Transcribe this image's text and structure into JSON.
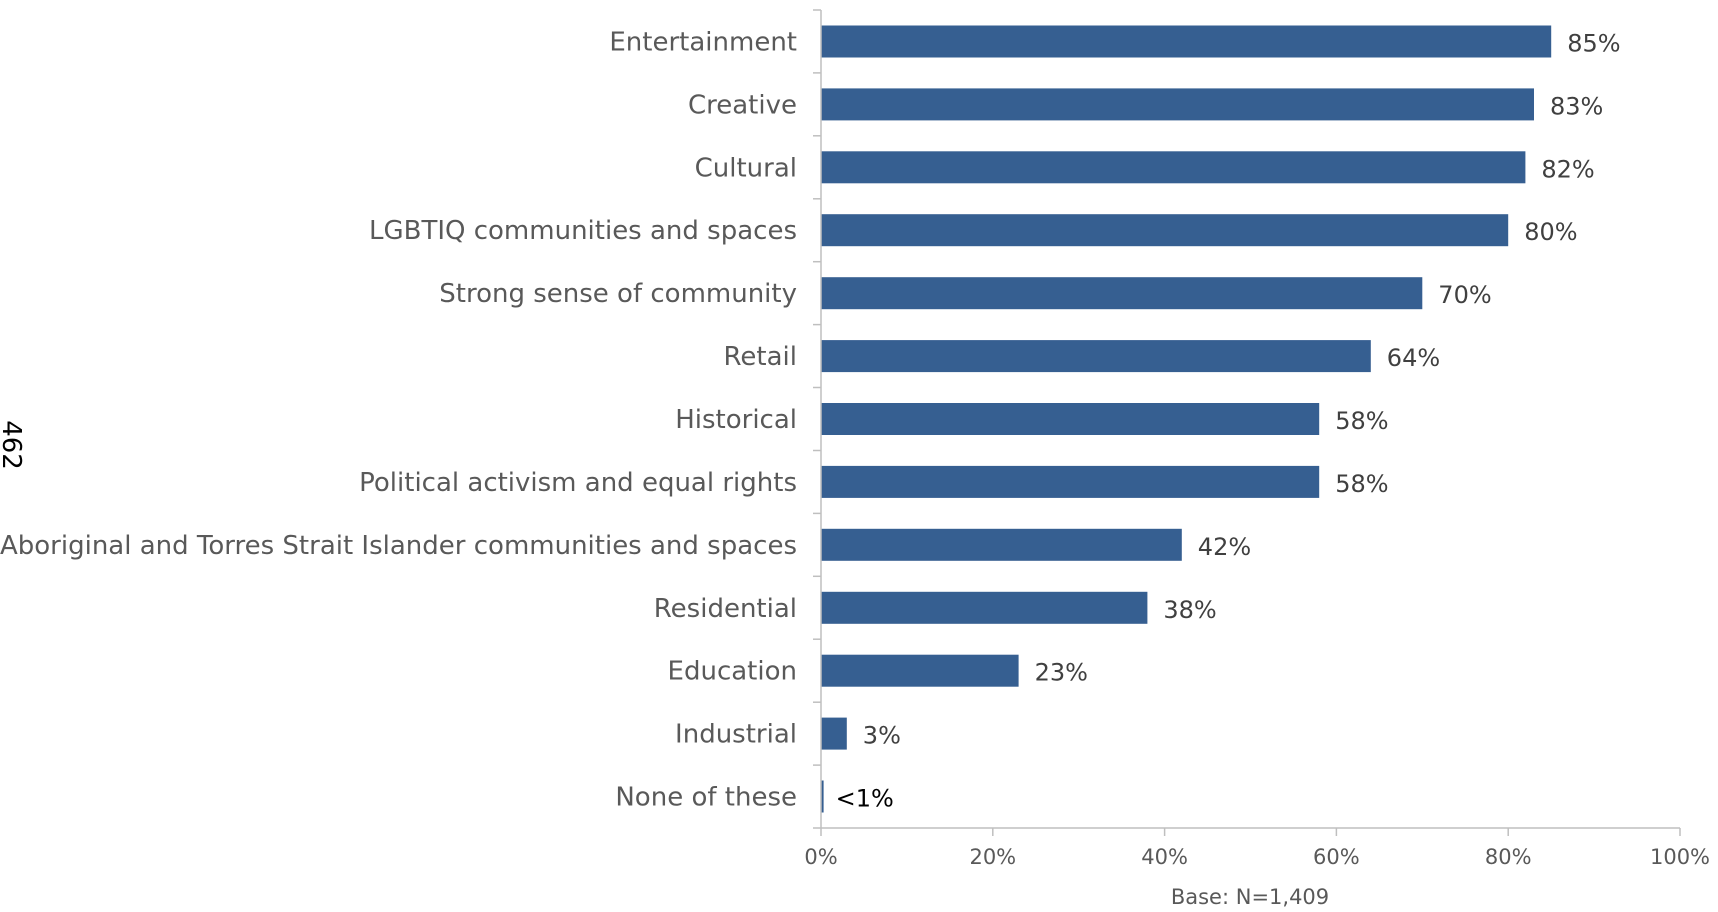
{
  "page": {
    "side_number": "462"
  },
  "chart_data": {
    "type": "bar",
    "orientation": "horizontal",
    "categories": [
      "Entertainment",
      "Creative",
      "Cultural",
      "LGBTIQ communities and spaces",
      "Strong sense of community",
      "Retail",
      "Historical",
      "Political activism and equal rights",
      "Aboriginal and Torres Strait Islander communities and spaces",
      "Residential",
      "Education",
      "Industrial",
      "None of these"
    ],
    "values": [
      85,
      83,
      82,
      80,
      70,
      64,
      58,
      58,
      42,
      38,
      23,
      3,
      0.3
    ],
    "value_labels": [
      "85%",
      "83%",
      "82%",
      "80%",
      "70%",
      "64%",
      "58%",
      "58%",
      "42%",
      "38%",
      "23%",
      "3%",
      "<1%"
    ],
    "x_ticks": [
      "0%",
      "20%",
      "40%",
      "60%",
      "80%",
      "100%"
    ],
    "xlim": [
      0,
      100
    ],
    "note": "Base: N=1,409",
    "bar_color": "#365f91",
    "grid": false,
    "legend": "none"
  }
}
